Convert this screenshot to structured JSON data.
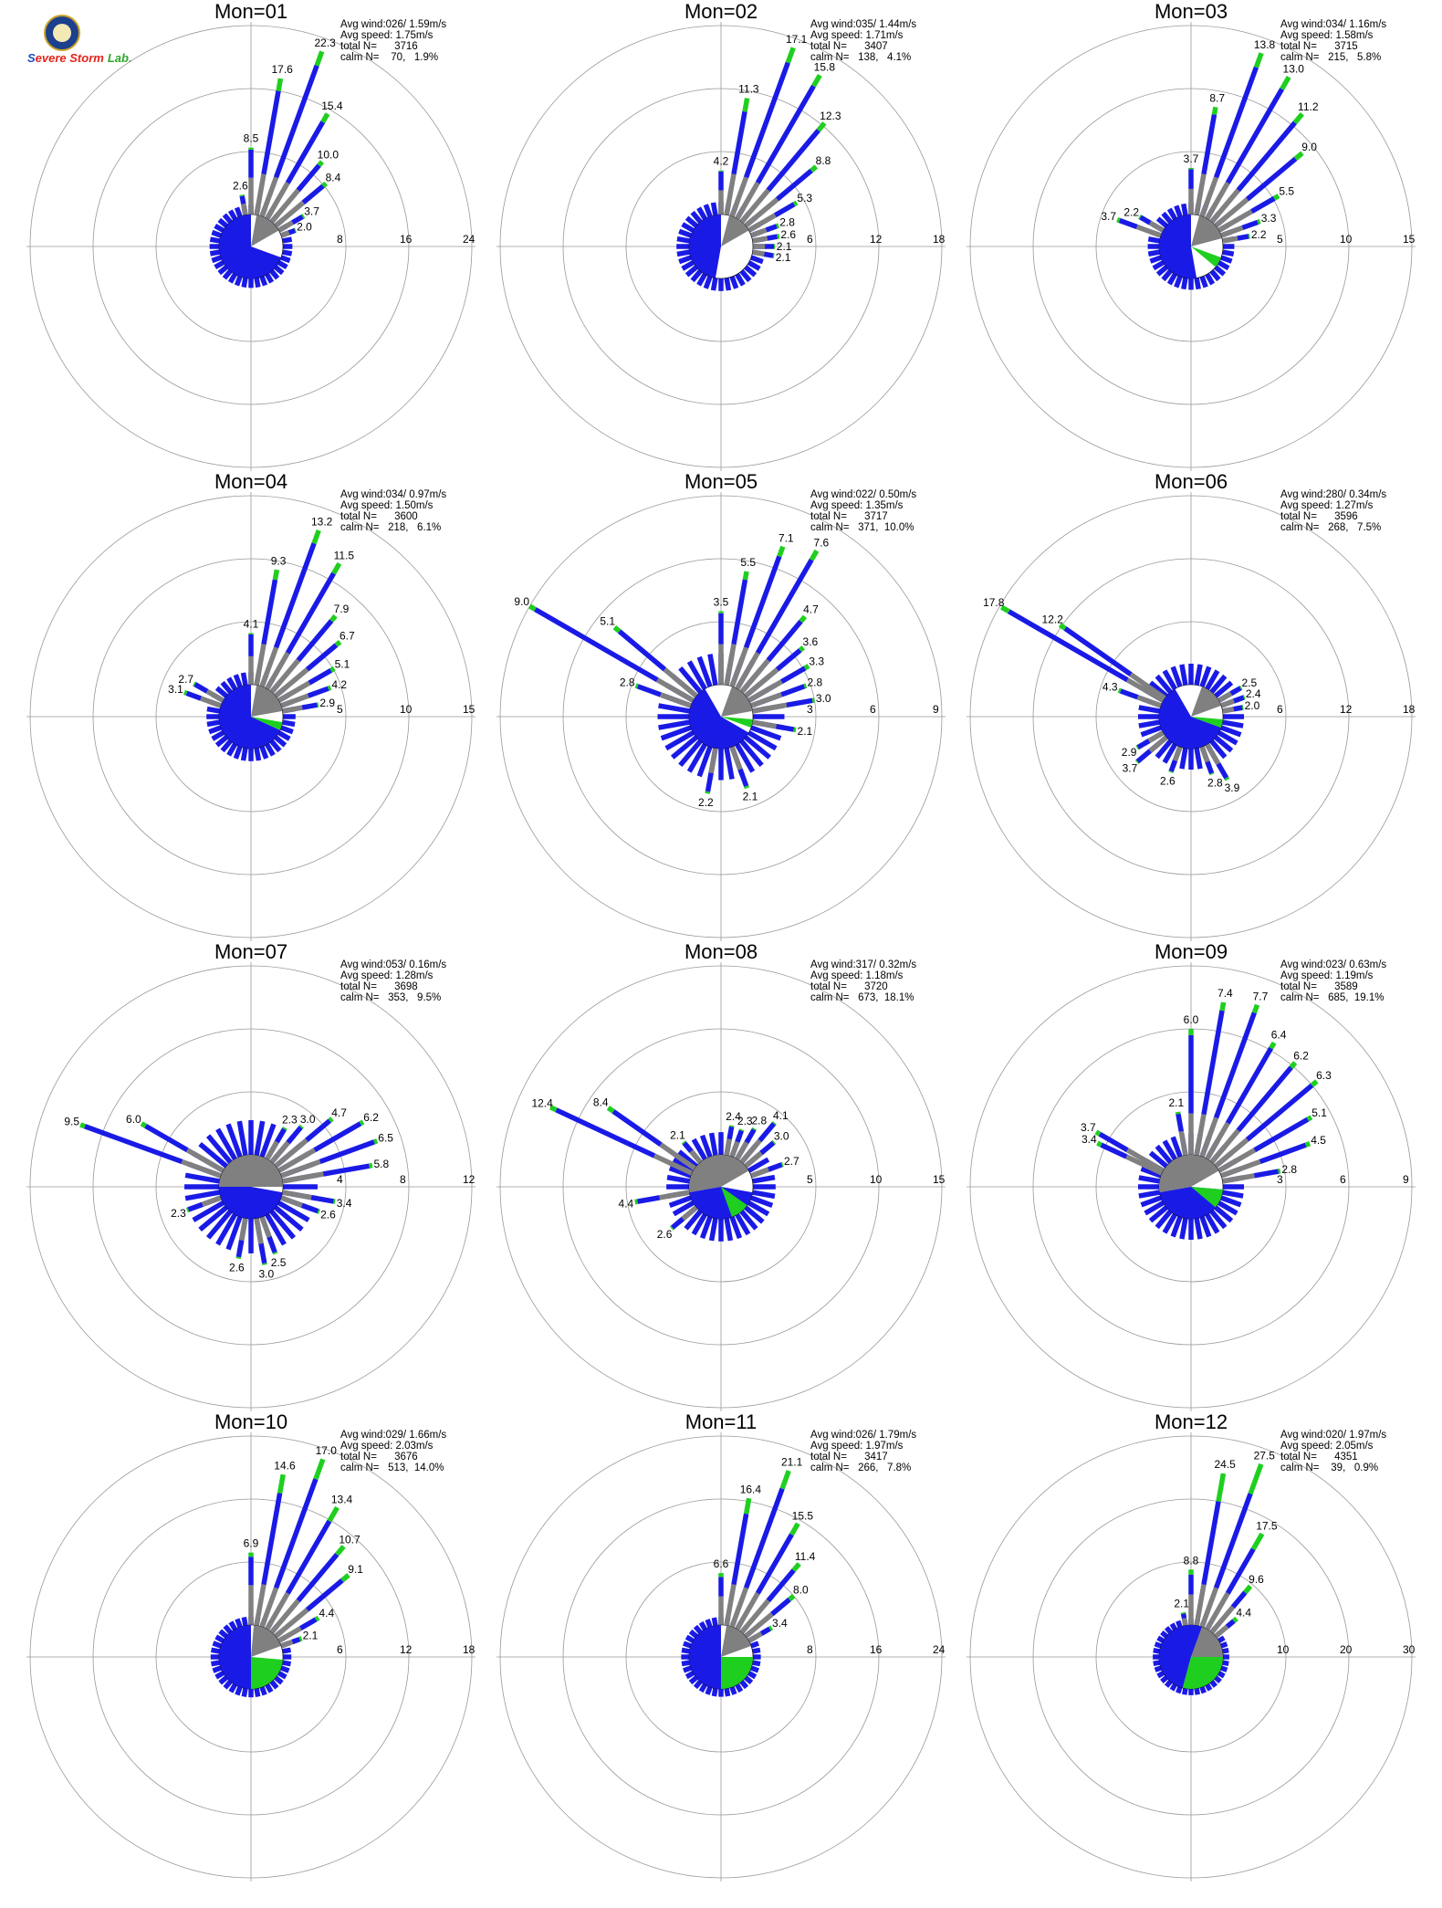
{
  "logo": {
    "part1": "S",
    "part2": "evere Storm",
    "part3": "Lab."
  },
  "chart_data": [
    {
      "type": "rose",
      "title": "Mon=01",
      "info": [
        "Avg wind:026/ 1.59m/s",
        "Avg speed: 1.75m/s",
        "total N=      3716",
        "calm N=    70,   1.9%"
      ],
      "rings": [
        8,
        16,
        24
      ],
      "ring_labels": [
        "8",
        "16",
        "24"
      ],
      "bars": [
        [
          350,
          2.6,
          0.15
        ],
        [
          0,
          8.5,
          0.25
        ],
        [
          10,
          17.6,
          1.6
        ],
        [
          20,
          22.3,
          1.9
        ],
        [
          30,
          15.4,
          1.2
        ],
        [
          40,
          10.0,
          0.6
        ],
        [
          50,
          8.4,
          0.5
        ],
        [
          60,
          3.7,
          0.2
        ],
        [
          70,
          2.0,
          0.1
        ]
      ],
      "small_bars": 1.2,
      "center": {
        "gray": [
          10,
          60
        ],
        "white": [
          60,
          110
        ],
        "blue": [
          110,
          360
        ],
        "green": []
      }
    },
    {
      "type": "rose",
      "title": "Mon=02",
      "info": [
        "Avg wind:035/ 1.44m/s",
        "Avg speed: 1.71m/s",
        "total N=      3407",
        "calm N=   138,   4.1%"
      ],
      "rings": [
        6,
        12,
        18
      ],
      "ring_labels": [
        "6",
        "12",
        "18"
      ],
      "bars": [
        [
          0,
          4.2,
          0.1
        ],
        [
          10,
          11.3,
          1.3
        ],
        [
          20,
          17.1,
          1.5
        ],
        [
          30,
          15.8,
          1.2
        ],
        [
          40,
          12.3,
          0.9
        ],
        [
          50,
          8.8,
          0.6
        ],
        [
          60,
          5.3,
          0.3
        ],
        [
          70,
          2.8,
          0.2
        ],
        [
          80,
          2.6,
          0.2
        ],
        [
          90,
          2.1,
          0.1
        ],
        [
          100,
          2.1,
          0.1
        ]
      ],
      "small_bars": 1.2,
      "center": {
        "gray": [
          15,
          60
        ],
        "white": [
          60,
          120
        ],
        "blue": [
          190,
          360
        ],
        "green": []
      }
    },
    {
      "type": "rose",
      "title": "Mon=03",
      "info": [
        "Avg wind:034/ 1.16m/s",
        "Avg speed: 1.58m/s",
        "total N=      3715",
        "calm N=   215,   5.8%"
      ],
      "rings": [
        5,
        10,
        15
      ],
      "ring_labels": [
        "5",
        "10",
        "15"
      ],
      "bars": [
        [
          0,
          3.7,
          0.1
        ],
        [
          10,
          8.7,
          0.6
        ],
        [
          20,
          13.8,
          1.2
        ],
        [
          30,
          13.0,
          1.1
        ],
        [
          40,
          11.2,
          0.9
        ],
        [
          50,
          9.0,
          0.7
        ],
        [
          60,
          5.5,
          0.4
        ],
        [
          70,
          3.3,
          0.2
        ],
        [
          80,
          2.2,
          0.1
        ],
        [
          300,
          2.2,
          0.1
        ],
        [
          290,
          3.7,
          0.2
        ]
      ],
      "small_bars": 0.9,
      "center": {
        "gray": [
          15,
          75
        ],
        "white": [
          75,
          110
        ],
        "blue": [
          170,
          360
        ],
        "green": [
          110,
          130
        ]
      }
    },
    {
      "type": "rose",
      "title": "Mon=04",
      "info": [
        "Avg wind:034/ 0.97m/s",
        "Avg speed: 1.50m/s",
        "total N=      3600",
        "calm N=   218,   6.1%"
      ],
      "rings": [
        5,
        10,
        15
      ],
      "ring_labels": [
        "5",
        "10",
        "15"
      ],
      "bars": [
        [
          0,
          4.1,
          0.1
        ],
        [
          10,
          9.3,
          0.8
        ],
        [
          20,
          13.2,
          1.1
        ],
        [
          30,
          11.5,
          0.9
        ],
        [
          40,
          7.9,
          0.5
        ],
        [
          50,
          6.7,
          0.4
        ],
        [
          60,
          5.1,
          0.3
        ],
        [
          70,
          4.2,
          0.2
        ],
        [
          80,
          2.9,
          0.1
        ],
        [
          300,
          2.7,
          0.1
        ],
        [
          290,
          3.1,
          0.2
        ]
      ],
      "small_bars": 1.0,
      "center": {
        "gray": [
          10,
          80
        ],
        "white": [
          80,
          100
        ],
        "blue": [
          115,
          360
        ],
        "green": [
          100,
          115
        ]
      }
    },
    {
      "type": "rose",
      "title": "Mon=05",
      "info": [
        "Avg wind:022/ 0.50m/s",
        "Avg speed: 1.35m/s",
        "total N=      3717",
        "calm N=   371,  10.0%"
      ],
      "rings": [
        3,
        6,
        9
      ],
      "ring_labels": [
        "3",
        "6",
        "9"
      ],
      "bars": [
        [
          0,
          3.5,
          0.1
        ],
        [
          10,
          5.5,
          0.4
        ],
        [
          20,
          7.1,
          0.5
        ],
        [
          30,
          7.6,
          0.5
        ],
        [
          40,
          4.7,
          0.3
        ],
        [
          50,
          3.6,
          0.2
        ],
        [
          60,
          3.3,
          0.2
        ],
        [
          70,
          2.8,
          0.1
        ],
        [
          80,
          3.0,
          0.1
        ],
        [
          100,
          2.1,
          0.1
        ],
        [
          160,
          2.1,
          0.1
        ],
        [
          190,
          2.2,
          0.1
        ],
        [
          300,
          9.0,
          0.3
        ],
        [
          310,
          5.1,
          0.3
        ],
        [
          290,
          2.8,
          0.1
        ]
      ],
      "small_bars": 1.5,
      "center": {
        "gray": [
          20,
          80
        ],
        "white": [
          80,
          95
        ],
        "blue": [
          120,
          330
        ],
        "green": [
          95,
          110
        ]
      }
    },
    {
      "type": "rose",
      "title": "Mon=06",
      "info": [
        "Avg wind:280/ 0.34m/s",
        "Avg speed: 1.27m/s",
        "total N=      3596",
        "calm N=   268,   7.5%"
      ],
      "rings": [
        6,
        12,
        18
      ],
      "ring_labels": [
        "6",
        "12",
        "18"
      ],
      "bars": [
        [
          300,
          17.8,
          0.8
        ],
        [
          305,
          12.2,
          0.6
        ],
        [
          290,
          4.3,
          0.2
        ],
        [
          60,
          2.5,
          0.1
        ],
        [
          70,
          2.4,
          0.1
        ],
        [
          80,
          2.0,
          0.1
        ],
        [
          150,
          3.9,
          0.2
        ],
        [
          160,
          2.8,
          0.1
        ],
        [
          200,
          2.6,
          0.1
        ],
        [
          230,
          3.7,
          0.1
        ],
        [
          240,
          2.9,
          0.1
        ]
      ],
      "small_bars": 2.0,
      "center": {
        "gray": [
          20,
          70
        ],
        "white": [
          70,
          95
        ],
        "blue": [
          110,
          330
        ],
        "green": [
          95,
          110
        ]
      }
    },
    {
      "type": "rose",
      "title": "Mon=07",
      "info": [
        "Avg wind:053/ 0.16m/s",
        "Avg speed: 1.28m/s",
        "total N=      3698",
        "calm N=   353,   9.5%"
      ],
      "rings": [
        4,
        8,
        12
      ],
      "ring_labels": [
        "4",
        "8",
        "12"
      ],
      "bars": [
        [
          290,
          9.5,
          0.3
        ],
        [
          300,
          6.0,
          0.3
        ],
        [
          30,
          2.3,
          0.1
        ],
        [
          40,
          3.0,
          0.1
        ],
        [
          50,
          4.7,
          0.2
        ],
        [
          60,
          6.2,
          0.2
        ],
        [
          70,
          6.5,
          0.2
        ],
        [
          80,
          5.8,
          0.2
        ],
        [
          100,
          3.4,
          0.1
        ],
        [
          110,
          2.6,
          0.1
        ],
        [
          160,
          2.5,
          0.1
        ],
        [
          170,
          3.0,
          0.1
        ],
        [
          190,
          2.6,
          0.1
        ],
        [
          250,
          2.3,
          0.1
        ]
      ],
      "small_bars": 2.2,
      "center": {
        "gray": [
          270,
          450
        ],
        "white": [
          90,
          100
        ],
        "blue": [
          100,
          270
        ],
        "green": []
      }
    },
    {
      "type": "rose",
      "title": "Mon=08",
      "info": [
        "Avg wind:317/ 0.32m/s",
        "Avg speed: 1.18m/s",
        "total N=      3720",
        "calm N=   673,  18.1%"
      ],
      "rings": [
        5,
        10,
        15
      ],
      "ring_labels": [
        "5",
        "10",
        "15"
      ],
      "bars": [
        [
          295,
          12.4,
          0.5
        ],
        [
          305,
          8.4,
          0.5
        ],
        [
          320,
          2.1,
          0.1
        ],
        [
          10,
          2.4,
          0.1
        ],
        [
          20,
          2.3,
          0.1
        ],
        [
          30,
          2.8,
          0.1
        ],
        [
          40,
          4.1,
          0.1
        ],
        [
          50,
          3.0,
          0.1
        ],
        [
          70,
          2.7,
          0.1
        ],
        [
          260,
          4.4,
          0.2
        ],
        [
          230,
          2.6,
          0.1
        ]
      ],
      "small_bars": 1.8,
      "center": {
        "gray": [
          260,
          420
        ],
        "white": [
          60,
          100
        ],
        "blue": [
          100,
          260
        ],
        "green": [
          125,
          160
        ]
      }
    },
    {
      "type": "rose",
      "title": "Mon=09",
      "info": [
        "Avg wind:023/ 0.63m/s",
        "Avg speed: 1.19m/s",
        "total N=      3589",
        "calm N=   685,  19.1%"
      ],
      "rings": [
        3,
        6,
        9
      ],
      "ring_labels": [
        "3",
        "6",
        "9"
      ],
      "bars": [
        [
          350,
          2.1,
          0.1
        ],
        [
          0,
          6.0,
          0.3
        ],
        [
          10,
          7.4,
          0.4
        ],
        [
          20,
          7.7,
          0.4
        ],
        [
          30,
          6.4,
          0.3
        ],
        [
          40,
          6.2,
          0.3
        ],
        [
          50,
          6.3,
          0.3
        ],
        [
          60,
          5.1,
          0.2
        ],
        [
          70,
          4.5,
          0.2
        ],
        [
          80,
          2.8,
          0.1
        ],
        [
          300,
          3.7,
          0.2
        ],
        [
          295,
          3.4,
          0.2
        ]
      ],
      "small_bars": 1.0,
      "center": {
        "gray": [
          260,
          420
        ],
        "white": [
          60,
          95
        ],
        "blue": [
          95,
          260
        ],
        "green": [
          95,
          130
        ]
      }
    },
    {
      "type": "rose",
      "title": "Mon=10",
      "info": [
        "Avg wind:029/ 1.66m/s",
        "Avg speed: 2.03m/s",
        "total N=      3676",
        "calm N=   513,  14.0%"
      ],
      "rings": [
        6,
        12,
        18
      ],
      "ring_labels": [
        "6",
        "12",
        "18"
      ],
      "bars": [
        [
          0,
          6.9,
          0.4
        ],
        [
          10,
          14.6,
          1.8
        ],
        [
          20,
          17.0,
          2.0
        ],
        [
          30,
          13.4,
          1.5
        ],
        [
          40,
          10.7,
          1.0
        ],
        [
          50,
          9.1,
          0.8
        ],
        [
          60,
          4.4,
          0.3
        ],
        [
          70,
          2.1,
          0.2
        ]
      ],
      "small_bars": 0.8,
      "center": {
        "gray": [
          5,
          70
        ],
        "white": [
          70,
          90
        ],
        "blue": [
          180,
          360
        ],
        "green": [
          95,
          180
        ]
      }
    },
    {
      "type": "rose",
      "title": "Mon=11",
      "info": [
        "Avg wind:026/ 1.79m/s",
        "Avg speed: 1.97m/s",
        "total N=      3417",
        "calm N=   266,   7.8%"
      ],
      "rings": [
        8,
        16,
        24
      ],
      "ring_labels": [
        "8",
        "16",
        "24"
      ],
      "bars": [
        [
          0,
          6.6,
          0.5
        ],
        [
          10,
          16.4,
          2.0
        ],
        [
          20,
          21.1,
          2.4
        ],
        [
          30,
          15.5,
          1.6
        ],
        [
          40,
          11.4,
          1.1
        ],
        [
          50,
          8.0,
          0.7
        ],
        [
          60,
          3.4,
          0.3
        ]
      ],
      "small_bars": 1.0,
      "center": {
        "gray": [
          10,
          70
        ],
        "white": [
          70,
          90
        ],
        "blue": [
          180,
          360
        ],
        "green": [
          90,
          180
        ]
      }
    },
    {
      "type": "rose",
      "title": "Mon=12",
      "info": [
        "Avg wind:020/ 1.97m/s",
        "Avg speed: 2.05m/s",
        "total N=      4351",
        "calm N=    39,   0.9%"
      ],
      "rings": [
        10,
        20,
        30
      ],
      "ring_labels": [
        "10",
        "20",
        "30"
      ],
      "bars": [
        [
          350,
          2.1,
          0.2
        ],
        [
          0,
          8.8,
          0.8
        ],
        [
          10,
          24.5,
          4.5
        ],
        [
          20,
          27.5,
          5.0
        ],
        [
          30,
          17.5,
          2.8
        ],
        [
          40,
          9.6,
          1.3
        ],
        [
          50,
          4.4,
          0.6
        ]
      ],
      "small_bars": 1.0,
      "center": {
        "gray": [
          20,
          90
        ],
        "white": [],
        "blue": [
          195,
          380
        ],
        "green": [
          90,
          195
        ]
      }
    }
  ]
}
